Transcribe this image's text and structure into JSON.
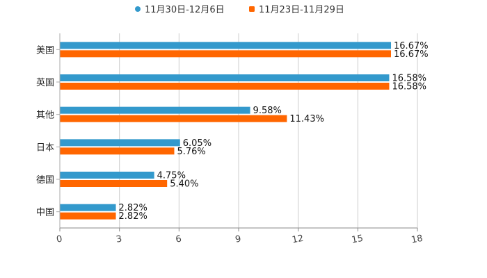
{
  "chart_data": {
    "type": "bar",
    "orientation": "horizontal",
    "categories": [
      "美国",
      "英国",
      "其他",
      "日本",
      "德国",
      "中国"
    ],
    "series": [
      {
        "name": "11月30日-12月6日",
        "color": "#3399cc",
        "values": [
          16.67,
          16.58,
          9.58,
          6.05,
          4.75,
          2.82
        ],
        "labels": [
          "16.67%",
          "16.58%",
          "9.58%",
          "6.05%",
          "4.75%",
          "2.82%"
        ]
      },
      {
        "name": "11月23日-11月29日",
        "color": "#ff6600",
        "values": [
          16.67,
          16.58,
          11.43,
          5.76,
          5.4,
          2.82
        ],
        "labels": [
          "16.67%",
          "16.58%",
          "11.43%",
          "5.76%",
          "5.40%",
          "2.82%"
        ]
      }
    ],
    "xlim": [
      0,
      18
    ],
    "xticks": [
      "0",
      "3",
      "6",
      "9",
      "12",
      "15",
      "18"
    ],
    "grid": true,
    "legend_position": "top-center"
  }
}
